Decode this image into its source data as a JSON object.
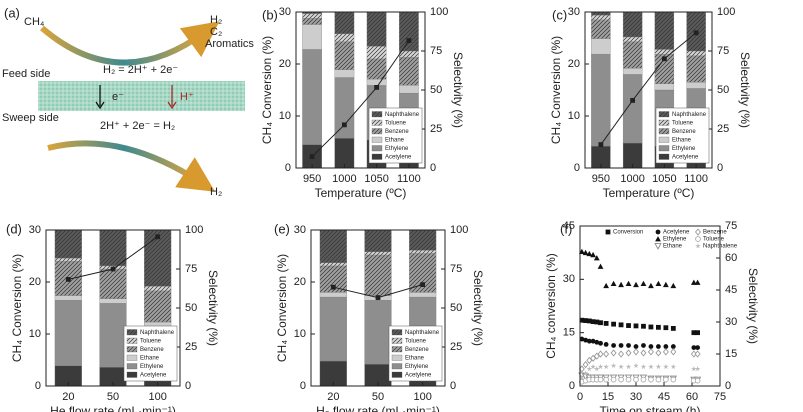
{
  "diagram": {
    "panel": "(a)",
    "input": "CH₄",
    "products": [
      "H₂",
      "C₂",
      "Aromatics"
    ],
    "feed_reaction": "H₂ = 2H⁺ + 2e⁻",
    "feed_side": "Feed side",
    "electron": "e⁻",
    "proton": "H⁺",
    "sweep_side": "Sweep side",
    "sweep_reaction": "2H⁺ + 2e⁻ = H₂",
    "sweep_product": "H₂"
  },
  "chart_data": [
    {
      "type": "bar",
      "panel": "(b)",
      "xlabel": "Temperature (ºC)",
      "ylabel": "CH₄ Conversion (%)",
      "y2label": "Selectivity (%)",
      "categories": [
        "950",
        "1000",
        "1050",
        "1100"
      ],
      "ylim": [
        0,
        30
      ],
      "yticks": [
        0,
        10,
        20,
        30
      ],
      "y2lim": [
        0,
        100
      ],
      "y2ticks": [
        0,
        25,
        50,
        75,
        100
      ],
      "series": [
        {
          "name": "Acetylene",
          "color": "#3b3b3b",
          "hatch": false,
          "axis": "y2",
          "values": [
            15,
            19,
            18,
            15
          ]
        },
        {
          "name": "Ethylene",
          "color": "#8e8e8e",
          "hatch": false,
          "axis": "y2",
          "values": [
            61,
            39,
            35,
            33
          ]
        },
        {
          "name": "Ethane",
          "color": "#cdcdcd",
          "hatch": false,
          "axis": "y2",
          "values": [
            16,
            5,
            4,
            5
          ]
        },
        {
          "name": "Benzene",
          "color": "#a0a0a0",
          "hatch": true,
          "axis": "y2",
          "values": [
            4,
            18,
            13,
            18
          ]
        },
        {
          "name": "Toluene",
          "color": "#d6d6d6",
          "hatch": true,
          "axis": "y2",
          "values": [
            3,
            5,
            8,
            4
          ]
        },
        {
          "name": "Naphthalene",
          "color": "#5a5a5a",
          "hatch": true,
          "axis": "y2",
          "values": [
            1,
            14,
            22,
            25
          ]
        },
        {
          "type": "line",
          "color": "#222222",
          "values": [
            2.2,
            8.3,
            15.5,
            24.5
          ]
        }
      ]
    },
    {
      "type": "bar",
      "panel": "(c)",
      "xlabel": "Temperature (ºC)",
      "ylabel": "CH₄ Conversion (%)",
      "y2label": "Selectivity (%)",
      "categories": [
        "950",
        "1000",
        "1050",
        "1100"
      ],
      "ylim": [
        0,
        30
      ],
      "yticks": [
        0,
        10,
        20,
        30
      ],
      "y2lim": [
        0,
        100
      ],
      "y2ticks": [
        0,
        25,
        50,
        75,
        100
      ],
      "series": [
        {
          "name": "Acetylene",
          "color": "#3b3b3b",
          "hatch": false,
          "axis": "y2",
          "values": [
            14,
            16,
            14,
            14
          ]
        },
        {
          "name": "Ethylene",
          "color": "#8e8e8e",
          "hatch": false,
          "axis": "y2",
          "values": [
            59,
            44,
            36,
            37
          ]
        },
        {
          "name": "Ethane",
          "color": "#cdcdcd",
          "hatch": false,
          "axis": "y2",
          "values": [
            10,
            4,
            4,
            4
          ]
        },
        {
          "name": "Benzene",
          "color": "#a0a0a0",
          "hatch": true,
          "axis": "y2",
          "values": [
            12,
            17,
            19,
            17
          ]
        },
        {
          "name": "Toluene",
          "color": "#d6d6d6",
          "hatch": true,
          "axis": "y2",
          "values": [
            3,
            3,
            3,
            3
          ]
        },
        {
          "name": "Naphthalene",
          "color": "#5a5a5a",
          "hatch": true,
          "axis": "y2",
          "values": [
            2,
            16,
            24,
            25
          ]
        },
        {
          "type": "line",
          "color": "#222222",
          "values": [
            4.5,
            13,
            21,
            26
          ]
        }
      ]
    },
    {
      "type": "bar",
      "panel": "(d)",
      "xlabel": "He flow rate (mL·min⁻¹)",
      "ylabel": "CH₄ Conversion (%)",
      "y2label": "Selectivity (%)",
      "categories": [
        "20",
        "50",
        "100"
      ],
      "ylim": [
        0,
        30
      ],
      "yticks": [
        0,
        10,
        20,
        30
      ],
      "y2lim": [
        0,
        100
      ],
      "y2ticks": [
        0,
        25,
        50,
        75,
        100
      ],
      "series": [
        {
          "name": "Acetylene",
          "color": "#3b3b3b",
          "hatch": false,
          "axis": "y2",
          "values": [
            13,
            12,
            12
          ]
        },
        {
          "name": "Ethylene",
          "color": "#8e8e8e",
          "hatch": false,
          "axis": "y2",
          "values": [
            42,
            41,
            26
          ]
        },
        {
          "name": "Ethane",
          "color": "#cdcdcd",
          "hatch": false,
          "axis": "y2",
          "values": [
            3,
            3,
            3
          ]
        },
        {
          "name": "Benzene",
          "color": "#a0a0a0",
          "hatch": true,
          "axis": "y2",
          "values": [
            22,
            19,
            20
          ]
        },
        {
          "name": "Toluene",
          "color": "#d6d6d6",
          "hatch": true,
          "axis": "y2",
          "values": [
            2,
            2,
            3
          ]
        },
        {
          "name": "Naphthalene",
          "color": "#5a5a5a",
          "hatch": true,
          "axis": "y2",
          "values": [
            18,
            23,
            36
          ]
        },
        {
          "type": "line",
          "color": "#222222",
          "values": [
            20.5,
            22.5,
            28.7
          ]
        }
      ]
    },
    {
      "type": "bar",
      "panel": "(e)",
      "xlabel": "H₂ flow rate (mL·min⁻¹)",
      "ylabel": "CH₄ Conversion (%)",
      "y2label": "Selectivity (%)",
      "categories": [
        "20",
        "50",
        "100"
      ],
      "ylim": [
        0,
        30
      ],
      "yticks": [
        0,
        10,
        20,
        30
      ],
      "y2lim": [
        0,
        100
      ],
      "y2ticks": [
        0,
        25,
        50,
        75,
        100
      ],
      "series": [
        {
          "name": "Acetylene",
          "color": "#3b3b3b",
          "hatch": false,
          "axis": "y2",
          "values": [
            16,
            14,
            14
          ]
        },
        {
          "name": "Ethylene",
          "color": "#8e8e8e",
          "hatch": false,
          "axis": "y2",
          "values": [
            41,
            41,
            43
          ]
        },
        {
          "name": "Ethane",
          "color": "#cdcdcd",
          "hatch": false,
          "axis": "y2",
          "values": [
            3,
            3,
            3
          ]
        },
        {
          "name": "Benzene",
          "color": "#a0a0a0",
          "hatch": true,
          "axis": "y2",
          "values": [
            17,
            26,
            25
          ]
        },
        {
          "name": "Toluene",
          "color": "#d6d6d6",
          "hatch": true,
          "axis": "y2",
          "values": [
            2,
            2,
            2
          ]
        },
        {
          "name": "Naphthalene",
          "color": "#5a5a5a",
          "hatch": true,
          "axis": "y2",
          "values": [
            21,
            14,
            13
          ]
        },
        {
          "type": "line",
          "color": "#222222",
          "values": [
            19,
            17,
            19.5
          ]
        }
      ]
    },
    {
      "type": "scatter",
      "panel": "(f)",
      "xlabel": "Time on stream (h)",
      "ylabel": "CH₄ conversion (%)",
      "y2label": "Selectivity (%)",
      "xlim": [
        0,
        75
      ],
      "xticks": [
        0,
        15,
        30,
        45,
        60,
        75
      ],
      "ylim": [
        0,
        45
      ],
      "yticks": [
        0,
        15,
        30,
        45
      ],
      "y2lim": [
        0,
        75
      ],
      "y2ticks": [
        0,
        15,
        30,
        45,
        60,
        75
      ],
      "x": [
        1,
        3,
        5,
        7,
        9,
        11,
        14,
        18,
        22,
        26,
        30,
        34,
        38,
        42,
        46,
        50,
        61,
        63
      ],
      "series": [
        {
          "name": "Conversion",
          "color": "#111111",
          "marker": "square",
          "values": [
            18.5,
            18.4,
            18.3,
            18.1,
            18,
            17.8,
            17.6,
            17.4,
            17.2,
            17,
            16.9,
            16.8,
            16.6,
            16.5,
            16.4,
            16.2,
            15,
            15
          ]
        },
        {
          "name": "Acetylene",
          "color": "#111111",
          "marker": "circle",
          "axis": "y2",
          "values": [
            22,
            21.5,
            21,
            21,
            20.5,
            20,
            19.5,
            19,
            19,
            19,
            18.5,
            19,
            18.5,
            18.5,
            18.5,
            18.5,
            18,
            18
          ]
        },
        {
          "name": "Ethylene",
          "color": "#111111",
          "marker": "triangle",
          "axis": "y2",
          "values": [
            63,
            62.5,
            62,
            61.5,
            60,
            56,
            47,
            48,
            47.5,
            48,
            47.5,
            48,
            47,
            48,
            47.5,
            47,
            48.5,
            48.5
          ]
        },
        {
          "name": "Ethane",
          "color": "#888888",
          "marker": "triangle-down-open",
          "axis": "y2",
          "values": [
            5,
            4.5,
            4,
            4,
            4,
            4,
            4,
            4,
            4,
            4,
            4,
            4,
            3.5,
            3.5,
            3.5,
            3.5,
            3,
            3
          ]
        },
        {
          "name": "Benzene",
          "color": "#999999",
          "marker": "diamond-open",
          "axis": "y2",
          "values": [
            8,
            10,
            12,
            13,
            14,
            15,
            15,
            15.5,
            15,
            15.5,
            16,
            15.5,
            16,
            15.5,
            16,
            16,
            15,
            15
          ]
        },
        {
          "name": "Toluene",
          "color": "#aaaaaa",
          "marker": "circle-open",
          "axis": "y2",
          "values": [
            2,
            2.5,
            3,
            3,
            3,
            3,
            3,
            3,
            3,
            3,
            3,
            3,
            3,
            3,
            3,
            3,
            2.5,
            2.5
          ]
        },
        {
          "name": "Naphthalene",
          "color": "#bbbbbb",
          "marker": "star",
          "axis": "y2",
          "values": [
            4,
            6,
            8,
            9,
            8,
            9,
            9,
            9.5,
            9,
            9,
            9.5,
            9,
            9,
            9,
            9,
            9,
            8,
            8
          ]
        }
      ]
    }
  ]
}
